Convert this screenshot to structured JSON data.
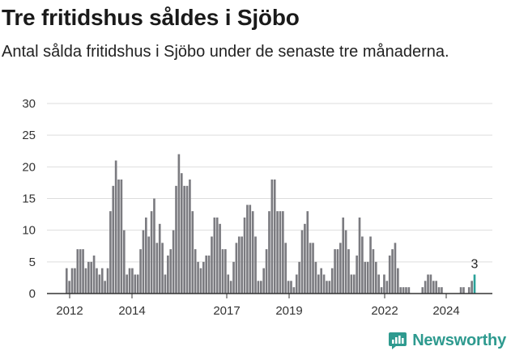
{
  "title": "Tre fritidshus såldes i Sjöbo",
  "subtitle": "Antal sålda fritidshus i Sjöbo under de senaste tre månaderna.",
  "brand": {
    "name": "Newsworthy",
    "icon": "newsworthy-logo-icon",
    "color": "#2e9a8f"
  },
  "colors": {
    "bar": "#7b7b80",
    "highlight": "#2aa198",
    "grid": "#dddddd",
    "axis": "#333333"
  },
  "chart_data": {
    "type": "bar",
    "y_ticks": [
      "0",
      "5",
      "10",
      "15",
      "20",
      "25",
      "30"
    ],
    "ylim": [
      0,
      30
    ],
    "x_ticks": [
      "2012",
      "2014",
      "2017",
      "2019",
      "2022",
      "2024"
    ],
    "values": [
      0,
      0,
      0,
      0,
      0,
      0,
      4,
      2,
      4,
      4,
      7,
      7,
      7,
      4,
      5,
      5,
      6,
      4,
      3,
      4,
      2,
      4,
      13,
      17,
      21,
      18,
      18,
      10,
      3,
      4,
      4,
      3,
      3,
      7,
      10,
      12,
      9,
      13,
      15,
      8,
      11,
      8,
      3,
      6,
      7,
      10,
      17,
      22,
      19,
      17,
      17,
      18,
      13,
      7,
      5,
      4,
      5,
      6,
      6,
      9,
      12,
      12,
      11,
      7,
      7,
      3,
      2,
      5,
      8,
      9,
      9,
      12,
      14,
      14,
      13,
      9,
      2,
      2,
      4,
      7,
      13,
      18,
      18,
      13,
      13,
      13,
      8,
      2,
      2,
      1,
      3,
      5,
      10,
      11,
      13,
      8,
      8,
      5,
      3,
      4,
      3,
      2,
      2,
      4,
      7,
      7,
      8,
      12,
      10,
      7,
      3,
      3,
      6,
      12,
      9,
      5,
      5,
      9,
      7,
      5,
      3,
      1,
      3,
      2,
      6,
      7,
      8,
      4,
      1,
      1,
      1,
      1,
      0,
      0,
      0,
      0,
      1,
      2,
      3,
      3,
      2,
      2,
      1,
      1,
      0,
      0,
      0,
      0,
      0,
      0,
      1,
      1,
      0,
      1,
      2,
      3
    ],
    "highlight_last": true,
    "last_value_label": "3"
  }
}
